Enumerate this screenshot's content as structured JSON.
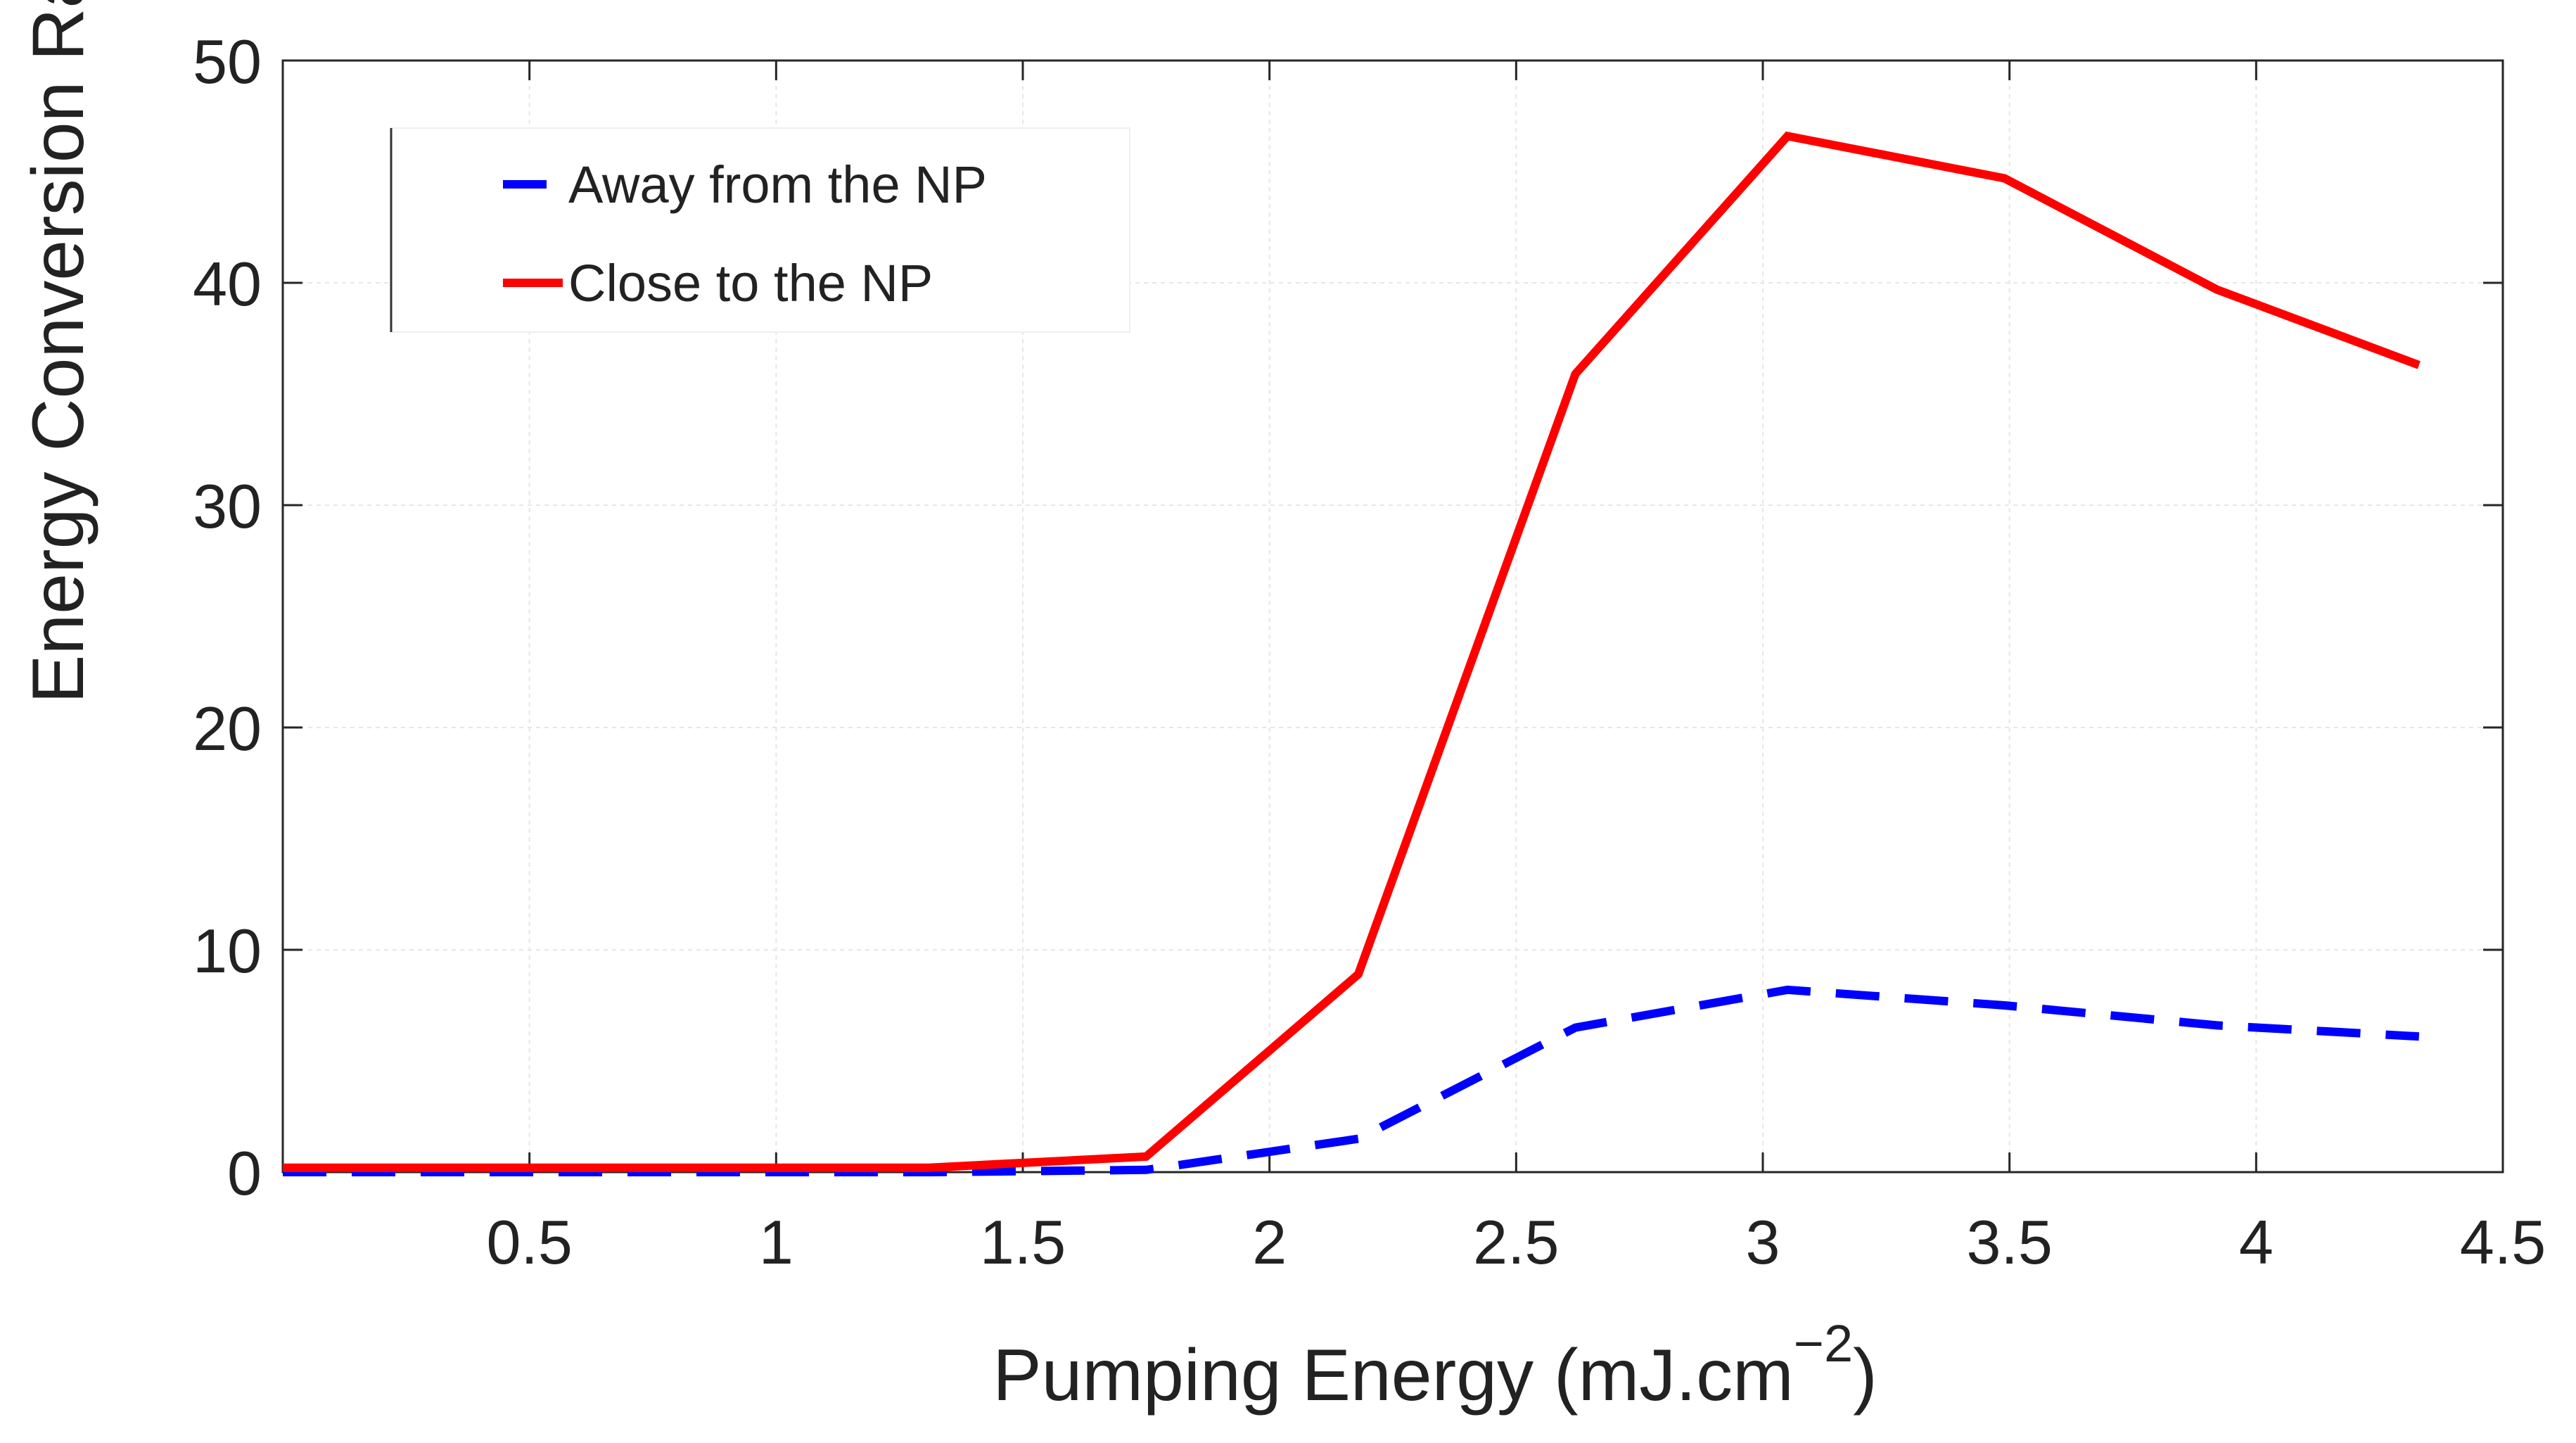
{
  "chart_data": {
    "type": "line",
    "title": "",
    "xlabel": "Pumping Energy (mJ.cm",
    "xlabel_superscript": "−2",
    "xlabel_suffix": ")",
    "ylabel": "Energy Conversion Rate",
    "xlim": [
      0.0,
      4.5
    ],
    "ylim": [
      0,
      50
    ],
    "xticks": [
      0.5,
      1,
      1.5,
      2,
      2.5,
      3,
      3.5,
      4,
      4.5
    ],
    "xtick_labels": [
      "0.5",
      "1",
      "1.5",
      "2",
      "2.5",
      "3",
      "3.5",
      "4",
      "4.5"
    ],
    "yticks": [
      0,
      10,
      20,
      30,
      40,
      50
    ],
    "ytick_labels": [
      "0",
      "10",
      "20",
      "30",
      "40",
      "50"
    ],
    "grid": true,
    "legend_position": "top-left",
    "series": [
      {
        "name": "Away from the NP",
        "color": "#0000ff",
        "style": "dashed",
        "x": [
          0.0,
          0.43,
          0.87,
          1.31,
          1.75,
          2.18,
          2.62,
          3.05,
          3.49,
          3.92,
          4.33
        ],
        "y": [
          0.0,
          0.0,
          0.0,
          0.0,
          0.1,
          1.5,
          6.5,
          8.2,
          7.5,
          6.6,
          6.1
        ]
      },
      {
        "name": "Close to the NP",
        "color": "#ff0000",
        "style": "solid",
        "x": [
          0.0,
          0.43,
          0.87,
          1.31,
          1.75,
          2.18,
          2.62,
          3.05,
          3.49,
          3.92,
          4.33
        ],
        "y": [
          0.2,
          0.2,
          0.2,
          0.2,
          0.7,
          8.9,
          35.9,
          46.6,
          44.7,
          39.7,
          36.3
        ]
      }
    ]
  }
}
